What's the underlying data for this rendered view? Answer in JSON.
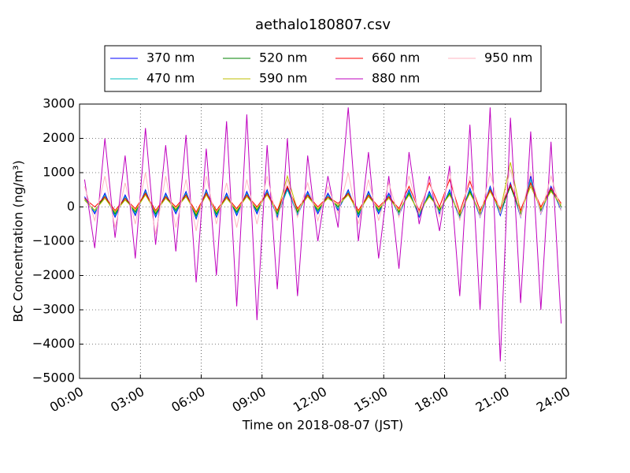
{
  "chart_data": {
    "type": "line",
    "title": "aethalo180807.csv",
    "x_label": "Time on 2018-08-07 (JST)",
    "y_label": "BC Concentration (ng/m³)",
    "xlim": [
      0,
      24
    ],
    "xticks": [
      {
        "value": 0,
        "label": "00:00"
      },
      {
        "value": 3,
        "label": "03:00"
      },
      {
        "value": 6,
        "label": "06:00"
      },
      {
        "value": 9,
        "label": "09:00"
      },
      {
        "value": 12,
        "label": "12:00"
      },
      {
        "value": 15,
        "label": "15:00"
      },
      {
        "value": 18,
        "label": "18:00"
      },
      {
        "value": 21,
        "label": "21:00"
      },
      {
        "value": 24,
        "label": "24:00"
      }
    ],
    "ylim": [
      -5000,
      3000
    ],
    "yticks": [
      {
        "value": -5000,
        "label": "−5000"
      },
      {
        "value": -4000,
        "label": "−4000"
      },
      {
        "value": -3000,
        "label": "−3000"
      },
      {
        "value": -2000,
        "label": "−2000"
      },
      {
        "value": -1000,
        "label": "−1000"
      },
      0,
      1000,
      2000,
      3000
    ],
    "grid": true,
    "legend_columns": 4,
    "x": [
      0.25,
      0.75,
      1.25,
      1.75,
      2.25,
      2.75,
      3.25,
      3.75,
      4.25,
      4.75,
      5.25,
      5.75,
      6.25,
      6.75,
      7.25,
      7.75,
      8.25,
      8.75,
      9.25,
      9.75,
      10.25,
      10.75,
      11.25,
      11.75,
      12.25,
      12.75,
      13.25,
      13.75,
      14.25,
      14.75,
      15.25,
      15.75,
      16.25,
      16.75,
      17.25,
      17.75,
      18.25,
      18.75,
      19.25,
      19.75,
      20.25,
      20.75,
      21.25,
      21.75,
      22.25,
      22.75,
      23.25,
      23.75
    ],
    "series": [
      {
        "name": "370 nm",
        "color": "#0000ff",
        "values": [
          300,
          -200,
          400,
          -300,
          350,
          -250,
          500,
          -300,
          400,
          -200,
          450,
          -350,
          500,
          -300,
          400,
          -250,
          450,
          -200,
          500,
          -300,
          550,
          -250,
          450,
          -200,
          400,
          -100,
          500,
          -300,
          450,
          -200,
          400,
          -250,
          500,
          -300,
          450,
          -200,
          500,
          -350,
          550,
          -300,
          600,
          -250,
          700,
          -300,
          900,
          -200,
          600,
          -100
        ]
      },
      {
        "name": "470 nm",
        "color": "#00bfbf",
        "values": [
          250,
          -150,
          350,
          -250,
          300,
          -200,
          450,
          -250,
          350,
          -150,
          400,
          -300,
          450,
          -250,
          350,
          -200,
          400,
          -150,
          450,
          -250,
          500,
          -200,
          400,
          -150,
          350,
          -50,
          450,
          -250,
          400,
          -150,
          350,
          -200,
          450,
          -250,
          400,
          -150,
          450,
          -300,
          500,
          -250,
          550,
          -200,
          650,
          -250,
          800,
          -150,
          550,
          -50
        ]
      },
      {
        "name": "520 nm",
        "color": "#008000",
        "values": [
          200,
          -100,
          300,
          -200,
          250,
          -150,
          400,
          -200,
          300,
          -100,
          350,
          -250,
          400,
          -200,
          300,
          -150,
          350,
          -100,
          400,
          -200,
          600,
          -150,
          350,
          -100,
          300,
          0,
          400,
          -200,
          350,
          -100,
          300,
          -150,
          400,
          -200,
          350,
          -100,
          400,
          -250,
          450,
          -200,
          500,
          -150,
          600,
          -200,
          700,
          -100,
          500,
          0
        ]
      },
      {
        "name": "590 nm",
        "color": "#bfbf00",
        "values": [
          200,
          -100,
          250,
          -150,
          200,
          -100,
          350,
          -150,
          250,
          -50,
          300,
          -200,
          350,
          -150,
          250,
          -100,
          300,
          -50,
          350,
          -150,
          900,
          -100,
          300,
          -50,
          250,
          50,
          350,
          -150,
          300,
          -50,
          250,
          -100,
          350,
          -150,
          300,
          -50,
          350,
          -200,
          400,
          -150,
          450,
          -100,
          1300,
          -150,
          600,
          -50,
          450,
          50
        ]
      },
      {
        "name": "660 nm",
        "color": "#ff0000",
        "values": [
          250,
          0,
          300,
          -100,
          250,
          -50,
          400,
          -100,
          300,
          0,
          350,
          -150,
          400,
          -100,
          300,
          -50,
          350,
          0,
          400,
          -100,
          600,
          -50,
          350,
          0,
          300,
          100,
          400,
          -100,
          350,
          0,
          300,
          -50,
          600,
          -100,
          700,
          0,
          800,
          -150,
          750,
          -100,
          500,
          -50,
          650,
          -100,
          700,
          0,
          550,
          100
        ]
      },
      {
        "name": "880 nm",
        "color": "#bf00bf",
        "values": [
          800,
          -1200,
          2000,
          -900,
          1500,
          -1500,
          2300,
          -1100,
          1800,
          -1300,
          2100,
          -2200,
          1700,
          -2000,
          2500,
          -2900,
          2700,
          -3300,
          1800,
          -2400,
          2000,
          -2600,
          1500,
          -1000,
          900,
          -600,
          2900,
          -1000,
          1600,
          -1500,
          900,
          -1800,
          1600,
          -500,
          900,
          -700,
          1200,
          -2600,
          2400,
          -3000,
          2900,
          -4500,
          2600,
          -2800,
          2200,
          -3000,
          1900,
          -3400
        ]
      },
      {
        "name": "950 nm",
        "color": "#ffb6c1",
        "values": [
          600,
          -400,
          900,
          -600,
          700,
          -500,
          1000,
          -800,
          900,
          -600,
          800,
          -700,
          900,
          -500,
          700,
          -600,
          800,
          -500,
          900,
          -400,
          800,
          -300,
          700,
          -400,
          600,
          -200,
          1000,
          -500,
          800,
          -400,
          700,
          -300,
          900,
          -200,
          800,
          -300,
          1000,
          -400,
          900,
          -300,
          1000,
          -200,
          1100,
          -300,
          1000,
          -200,
          900,
          -100
        ]
      }
    ]
  }
}
